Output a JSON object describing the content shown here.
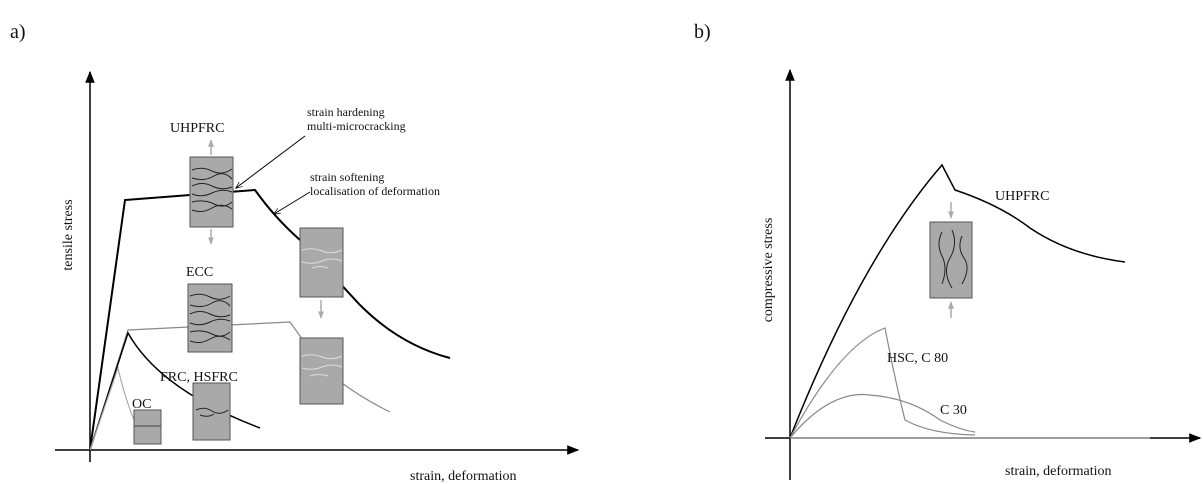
{
  "panels": [
    {
      "label": "a)",
      "y_axis_label": "tensile stress",
      "x_axis_label": "strain, deformation",
      "curve_labels": [
        "UHPFRC",
        "ECC",
        "FRC, HSFRC",
        "OC"
      ],
      "annotations": [
        [
          "strain hardening",
          "multi-microcracking"
        ],
        [
          "strain softening",
          "localisation of deformation"
        ]
      ]
    },
    {
      "label": "b)",
      "y_axis_label": "compressive stress",
      "x_axis_label": "strain, deformation",
      "curve_labels": [
        "UHPFRC",
        "HSC, C 80",
        "C 30"
      ]
    }
  ]
}
